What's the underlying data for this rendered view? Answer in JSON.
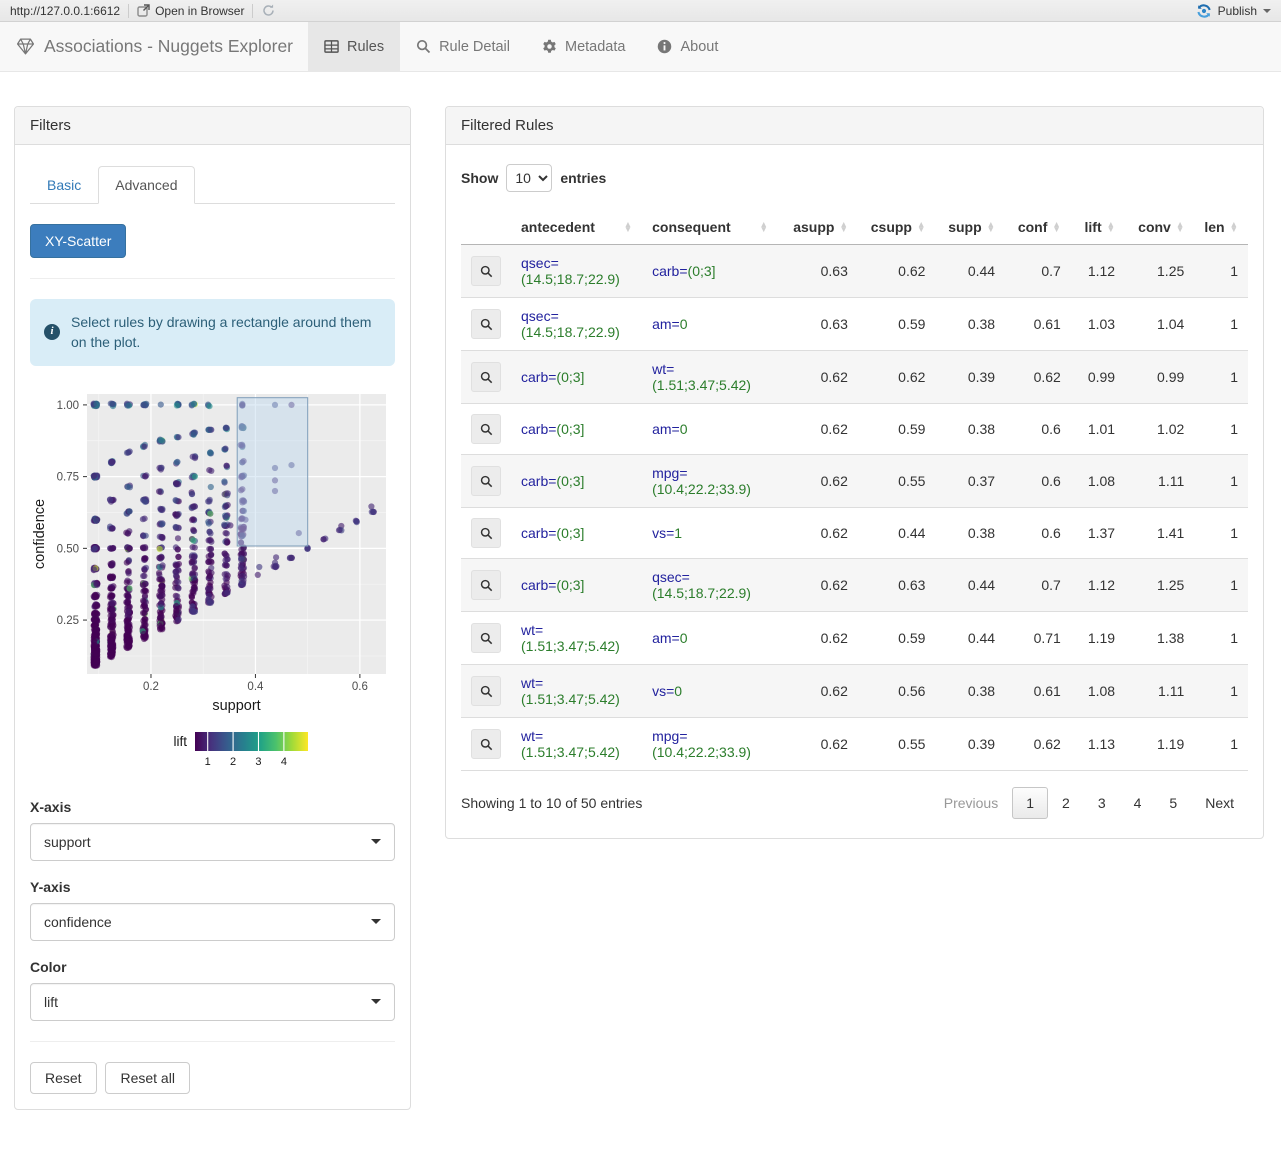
{
  "browser_bar": {
    "url": "http://127.0.0.1:6612",
    "open_in_browser": "Open in Browser",
    "publish": "Publish",
    "publish_color": "#2e7cc4"
  },
  "navbar": {
    "brand": "Associations - Nuggets Explorer",
    "tabs": [
      {
        "label": "Rules",
        "icon": "table-icon",
        "active": true
      },
      {
        "label": "Rule Detail",
        "icon": "search-icon",
        "active": false
      },
      {
        "label": "Metadata",
        "icon": "gear-icon",
        "active": false
      },
      {
        "label": "About",
        "icon": "info-icon",
        "active": false
      }
    ]
  },
  "filters": {
    "title": "Filters",
    "tab_basic": "Basic",
    "tab_advanced": "Advanced",
    "scatter_button": "XY-Scatter",
    "info_text": "Select rules by drawing a rectangle around them on the plot.",
    "x_axis_label": "X-axis",
    "x_axis_value": "support",
    "y_axis_label": "Y-axis",
    "y_axis_value": "confidence",
    "color_label": "Color",
    "color_value": "lift",
    "reset_label": "Reset",
    "reset_all_label": "Reset all"
  },
  "chart_data": {
    "type": "scatter",
    "xlabel": "support",
    "ylabel": "confidence",
    "x_ticks": [
      0.2,
      0.4,
      0.6
    ],
    "x_minor_ticks": [
      0.1,
      0.3,
      0.5
    ],
    "y_ticks": [
      0.25,
      0.5,
      0.75,
      1.0
    ],
    "y_minor_ticks": [
      0.125,
      0.375,
      0.625,
      0.875
    ],
    "xlim": [
      0.0775,
      0.65
    ],
    "ylim": [
      0.062,
      1.038
    ],
    "color": {
      "label": "lift",
      "palette": "viridis",
      "range": [
        0.5,
        4.95
      ],
      "ticks": [
        1,
        2,
        3,
        4
      ]
    },
    "selection_box": {
      "x0": 0.365,
      "x1": 0.5,
      "y0": 0.508,
      "y1": 1.025
    },
    "point_style": {
      "radius": 3.1,
      "opacity": 0.62
    },
    "cloud": {
      "seed": 42,
      "n": 1400,
      "basis_rows": 32,
      "description": "rule cloud: supp=k/32, conf=k/m, dense at low support, conf>=supp"
    },
    "diagonal_chain": {
      "n": 70,
      "max_supp": 0.656
    },
    "highlight_points": [
      [
        0.375,
        1.0
      ],
      [
        0.4375,
        1.0
      ],
      [
        0.469,
        1.0
      ],
      [
        0.375,
        0.857
      ],
      [
        0.375,
        0.8
      ],
      [
        0.375,
        0.75
      ],
      [
        0.375,
        0.706
      ],
      [
        0.4375,
        0.78
      ],
      [
        0.469,
        0.79
      ],
      [
        0.4375,
        0.737
      ],
      [
        0.4375,
        0.7
      ],
      [
        0.375,
        0.66
      ],
      [
        0.378,
        0.63
      ],
      [
        0.381,
        0.6
      ],
      [
        0.5,
        0.5
      ],
      [
        0.483,
        0.553
      ],
      [
        0.344,
        0.611
      ],
      [
        0.352,
        0.58
      ]
    ]
  },
  "rules_panel": {
    "title": "Filtered Rules",
    "show_label": "Show",
    "entries_label": "entries",
    "page_length": "10",
    "columns": [
      "antecedent",
      "consequent",
      "asupp",
      "csupp",
      "supp",
      "conf",
      "lift",
      "conv",
      "len"
    ],
    "rows": [
      {
        "antecedent": {
          "attr": "qsec=",
          "val": "(14.5;18.7;22.9)"
        },
        "consequent": {
          "attr": "carb=",
          "val": "(0;3]"
        },
        "values": [
          "0.63",
          "0.62",
          "0.44",
          "0.7",
          "1.12",
          "1.25",
          "1"
        ]
      },
      {
        "antecedent": {
          "attr": "qsec=",
          "val": "(14.5;18.7;22.9)"
        },
        "consequent": {
          "attr": "am=",
          "val": "0"
        },
        "values": [
          "0.63",
          "0.59",
          "0.38",
          "0.61",
          "1.03",
          "1.04",
          "1"
        ]
      },
      {
        "antecedent": {
          "attr": "carb=",
          "val": "(0;3]"
        },
        "consequent": {
          "attr": "wt=",
          "val": "(1.51;3.47;5.42)"
        },
        "values": [
          "0.62",
          "0.62",
          "0.39",
          "0.62",
          "0.99",
          "0.99",
          "1"
        ]
      },
      {
        "antecedent": {
          "attr": "carb=",
          "val": "(0;3]"
        },
        "consequent": {
          "attr": "am=",
          "val": "0"
        },
        "values": [
          "0.62",
          "0.59",
          "0.38",
          "0.6",
          "1.01",
          "1.02",
          "1"
        ]
      },
      {
        "antecedent": {
          "attr": "carb=",
          "val": "(0;3]"
        },
        "consequent": {
          "attr": "mpg=",
          "val": "(10.4;22.2;33.9)"
        },
        "values": [
          "0.62",
          "0.55",
          "0.37",
          "0.6",
          "1.08",
          "1.11",
          "1"
        ]
      },
      {
        "antecedent": {
          "attr": "carb=",
          "val": "(0;3]"
        },
        "consequent": {
          "attr": "vs=",
          "val": "1"
        },
        "values": [
          "0.62",
          "0.44",
          "0.38",
          "0.6",
          "1.37",
          "1.41",
          "1"
        ]
      },
      {
        "antecedent": {
          "attr": "carb=",
          "val": "(0;3]"
        },
        "consequent": {
          "attr": "qsec=",
          "val": "(14.5;18.7;22.9)"
        },
        "values": [
          "0.62",
          "0.63",
          "0.44",
          "0.7",
          "1.12",
          "1.25",
          "1"
        ]
      },
      {
        "antecedent": {
          "attr": "wt=",
          "val": "(1.51;3.47;5.42)"
        },
        "consequent": {
          "attr": "am=",
          "val": "0"
        },
        "values": [
          "0.62",
          "0.59",
          "0.44",
          "0.71",
          "1.19",
          "1.38",
          "1"
        ]
      },
      {
        "antecedent": {
          "attr": "wt=",
          "val": "(1.51;3.47;5.42)"
        },
        "consequent": {
          "attr": "vs=",
          "val": "0"
        },
        "values": [
          "0.62",
          "0.56",
          "0.38",
          "0.61",
          "1.08",
          "1.11",
          "1"
        ]
      },
      {
        "antecedent": {
          "attr": "wt=",
          "val": "(1.51;3.47;5.42)"
        },
        "consequent": {
          "attr": "mpg=",
          "val": "(10.4;22.2;33.9)"
        },
        "values": [
          "0.62",
          "0.55",
          "0.39",
          "0.62",
          "1.13",
          "1.19",
          "1"
        ]
      }
    ],
    "info": "Showing 1 to 10 of 50 entries",
    "pagination": {
      "previous": "Previous",
      "pages": [
        "1",
        "2",
        "3",
        "4",
        "5"
      ],
      "active": "1",
      "next": "Next"
    }
  }
}
